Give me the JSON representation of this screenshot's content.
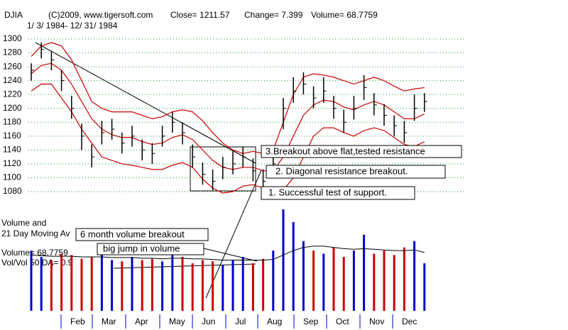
{
  "chart_data": {
    "type": "ohlc",
    "title": "DJIA",
    "header": [
      "(C)2009, www.tigersoft.com",
      "Close=  1211.57",
      "Change= 7.399",
      "Volume= 68.7759"
    ],
    "subtitle": "1/ 3/ 1984- 12/ 31/ 1984",
    "months": [
      "Feb",
      "Mar",
      "Apr",
      "May",
      "Jun",
      "Jul",
      "Aug",
      "Sep",
      "Oct",
      "Nov",
      "Dec"
    ],
    "ylim": [
      1080,
      1300
    ],
    "yticks": [
      1080,
      1100,
      1120,
      1140,
      1160,
      1180,
      1200,
      1220,
      1240,
      1260,
      1280,
      1300
    ],
    "grid": true,
    "close": [
      1255,
      1285,
      1270,
      1240,
      1200,
      1160,
      1130,
      1165,
      1170,
      1150,
      1160,
      1140,
      1135,
      1160,
      1180,
      1165,
      1130,
      1105,
      1095,
      1115,
      1120,
      1130,
      1110,
      1095,
      1120,
      1200,
      1225,
      1235,
      1215,
      1225,
      1200,
      1180,
      1200,
      1230,
      1205,
      1190,
      1175,
      1165,
      1200,
      1210
    ],
    "high": [
      1265,
      1295,
      1282,
      1255,
      1218,
      1178,
      1148,
      1182,
      1185,
      1165,
      1175,
      1155,
      1150,
      1175,
      1195,
      1180,
      1148,
      1122,
      1112,
      1130,
      1138,
      1145,
      1128,
      1112,
      1140,
      1215,
      1245,
      1252,
      1232,
      1245,
      1218,
      1198,
      1218,
      1248,
      1222,
      1206,
      1190,
      1182,
      1220,
      1222
    ],
    "low": [
      1240,
      1272,
      1255,
      1225,
      1185,
      1140,
      1115,
      1148,
      1155,
      1135,
      1145,
      1125,
      1120,
      1145,
      1165,
      1148,
      1115,
      1090,
      1082,
      1098,
      1105,
      1115,
      1095,
      1080,
      1102,
      1170,
      1208,
      1220,
      1200,
      1208,
      1185,
      1165,
      1184,
      1212,
      1190,
      1175,
      1160,
      1150,
      1182,
      1195
    ],
    "ma": [
      1250,
      1262,
      1265,
      1255,
      1235,
      1210,
      1185,
      1170,
      1162,
      1158,
      1158,
      1152,
      1148,
      1150,
      1158,
      1162,
      1155,
      1140,
      1125,
      1115,
      1112,
      1115,
      1115,
      1110,
      1110,
      1130,
      1160,
      1190,
      1205,
      1212,
      1210,
      1202,
      1198,
      1205,
      1210,
      1205,
      1195,
      1185,
      1185,
      1192
    ],
    "upper": [
      1275,
      1290,
      1295,
      1290,
      1270,
      1240,
      1210,
      1200,
      1195,
      1195,
      1195,
      1190,
      1185,
      1188,
      1195,
      1198,
      1195,
      1182,
      1165,
      1150,
      1140,
      1135,
      1138,
      1135,
      1140,
      1180,
      1220,
      1245,
      1250,
      1248,
      1245,
      1240,
      1235,
      1240,
      1245,
      1240,
      1232,
      1225,
      1228,
      1230
    ],
    "lower": [
      1225,
      1235,
      1235,
      1215,
      1195,
      1170,
      1150,
      1130,
      1125,
      1120,
      1118,
      1115,
      1112,
      1112,
      1118,
      1122,
      1115,
      1098,
      1085,
      1078,
      1080,
      1088,
      1090,
      1085,
      1078,
      1082,
      1100,
      1130,
      1160,
      1172,
      1172,
      1165,
      1160,
      1168,
      1172,
      1168,
      1158,
      1148,
      1145,
      1152
    ],
    "volume": [
      95,
      85,
      80,
      90,
      88,
      82,
      85,
      92,
      80,
      78,
      85,
      80,
      82,
      78,
      90,
      85,
      75,
      80,
      78,
      72,
      80,
      85,
      75,
      82,
      95,
      160,
      140,
      110,
      95,
      90,
      100,
      85,
      95,
      120,
      90,
      95,
      88,
      100,
      110,
      75
    ],
    "volume_ma": [
      88,
      87,
      86,
      86,
      86,
      85,
      85,
      85,
      84,
      84,
      84,
      83,
      83,
      82,
      83,
      83,
      82,
      82,
      81,
      80,
      80,
      80,
      80,
      80,
      81,
      88,
      95,
      100,
      102,
      102,
      100,
      98,
      97,
      98,
      97,
      96,
      95,
      95,
      96,
      92
    ],
    "volume_labels": [
      "Volume and",
      "21 Day Moving Av",
      "Volume= 68.7759",
      "Vol/Vol 50 DA= 0.9"
    ],
    "annotations": [
      "3.Breakout above flat,tested resistance",
      "2. Diagonal resistance breakout.",
      "1. Successful test of support.",
      "6 month volume breakout",
      "big jump in volume"
    ]
  }
}
